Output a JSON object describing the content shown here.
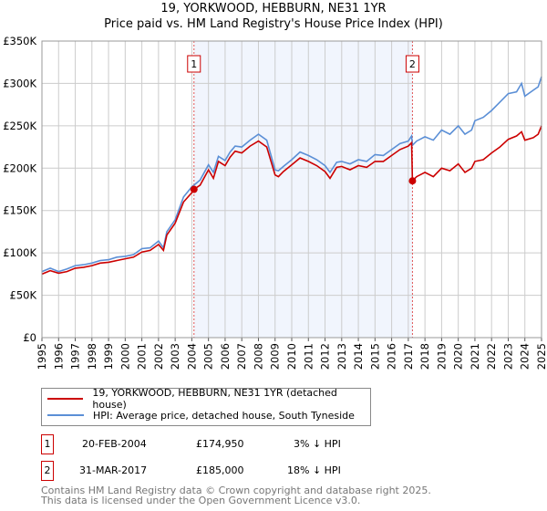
{
  "chart_data": {
    "type": "line",
    "title": "19, YORKWOOD, HEBBURN, NE31 1YR",
    "subtitle": "Price paid vs. HM Land Registry's House Price Index (HPI)",
    "xlim": [
      1995,
      2025
    ],
    "ylim": [
      0,
      350000
    ],
    "x_ticks": [
      "1995",
      "1996",
      "1997",
      "1998",
      "1999",
      "2000",
      "2001",
      "2002",
      "2003",
      "2004",
      "2005",
      "2006",
      "2007",
      "2008",
      "2009",
      "2010",
      "2011",
      "2012",
      "2013",
      "2014",
      "2015",
      "2016",
      "2017",
      "2018",
      "2019",
      "2020",
      "2021",
      "2022",
      "2023",
      "2024",
      "2025"
    ],
    "y_ticks": [
      {
        "v": 0,
        "label": "£0"
      },
      {
        "v": 50000,
        "label": "£50K"
      },
      {
        "v": 100000,
        "label": "£100K"
      },
      {
        "v": 150000,
        "label": "£150K"
      },
      {
        "v": 200000,
        "label": "£200K"
      },
      {
        "v": 250000,
        "label": "£250K"
      },
      {
        "v": 300000,
        "label": "£300K"
      },
      {
        "v": 350000,
        "label": "£350K"
      }
    ],
    "grid": true,
    "shaded_range": [
      2004.13,
      2017.25
    ],
    "series": [
      {
        "name": "19, YORKWOOD, HEBBURN, NE31 1YR (detached house)",
        "color": "#cc0000",
        "x": [
          1995,
          1995.5,
          1996,
          1996.5,
          1997,
          1997.5,
          1998,
          1998.5,
          1999,
          1999.5,
          2000,
          2000.5,
          2001,
          2001.5,
          2002,
          2002.3,
          2002.5,
          2003,
          2003.5,
          2004,
          2004.13,
          2004.5,
          2005,
          2005.3,
          2005.6,
          2006,
          2006.3,
          2006.6,
          2007,
          2007.5,
          2008,
          2008.5,
          2009,
          2009.2,
          2009.5,
          2010,
          2010.5,
          2011,
          2011.5,
          2012,
          2012.3,
          2012.7,
          2013,
          2013.5,
          2014,
          2014.5,
          2015,
          2015.5,
          2016,
          2016.5,
          2017,
          2017.2,
          2017.25,
          2017.5,
          2018,
          2018.5,
          2019,
          2019.5,
          2020,
          2020.4,
          2020.8,
          2021,
          2021.5,
          2022,
          2022.5,
          2023,
          2023.5,
          2023.8,
          2024,
          2024.5,
          2024.8,
          2025
        ],
        "y": [
          75000,
          79000,
          76000,
          78000,
          82000,
          83000,
          85000,
          88000,
          89000,
          91000,
          93000,
          95000,
          101000,
          103000,
          110000,
          103000,
          121000,
          135000,
          160000,
          171000,
          174950,
          180000,
          198000,
          188000,
          208000,
          203000,
          213000,
          220000,
          218000,
          226000,
          232000,
          225000,
          192000,
          190000,
          196000,
          204000,
          212000,
          208000,
          203000,
          196000,
          188000,
          201000,
          202000,
          198000,
          203000,
          201000,
          208000,
          208000,
          215000,
          222000,
          226000,
          230000,
          185000,
          190000,
          195000,
          190000,
          200000,
          197000,
          205000,
          195000,
          200000,
          208000,
          210000,
          218000,
          225000,
          234000,
          238000,
          243000,
          233000,
          236000,
          240000,
          250000
        ]
      },
      {
        "name": "HPI: Average price, detached house, South Tyneside",
        "color": "#5b8fd6",
        "x": [
          1995,
          1995.5,
          1996,
          1996.5,
          1997,
          1997.5,
          1998,
          1998.5,
          1999,
          1999.5,
          2000,
          2000.5,
          2001,
          2001.5,
          2002,
          2002.3,
          2002.5,
          2003,
          2003.5,
          2004,
          2004.13,
          2004.5,
          2005,
          2005.3,
          2005.6,
          2006,
          2006.3,
          2006.6,
          2007,
          2007.5,
          2008,
          2008.5,
          2009,
          2009.2,
          2009.5,
          2010,
          2010.5,
          2011,
          2011.5,
          2012,
          2012.3,
          2012.7,
          2013,
          2013.5,
          2014,
          2014.5,
          2015,
          2015.5,
          2016,
          2016.5,
          2017,
          2017.2,
          2017.25,
          2017.5,
          2018,
          2018.5,
          2019,
          2019.5,
          2020,
          2020.4,
          2020.8,
          2021,
          2021.5,
          2022,
          2022.5,
          2023,
          2023.5,
          2023.8,
          2024,
          2024.5,
          2024.8,
          2025
        ],
        "y": [
          78000,
          82000,
          78000,
          81000,
          85000,
          86000,
          88000,
          91000,
          92000,
          95000,
          96000,
          98000,
          105000,
          106000,
          114000,
          106000,
          125000,
          139000,
          166000,
          178000,
          180000,
          186000,
          204000,
          195000,
          214000,
          209000,
          219000,
          226000,
          225000,
          233000,
          240000,
          233000,
          198000,
          197000,
          202000,
          210000,
          219000,
          215000,
          210000,
          203000,
          195000,
          207000,
          208000,
          205000,
          210000,
          208000,
          216000,
          215000,
          222000,
          229000,
          232000,
          238000,
          227000,
          232000,
          237000,
          233000,
          245000,
          240000,
          250000,
          240000,
          245000,
          256000,
          260000,
          268000,
          278000,
          288000,
          290000,
          300000,
          285000,
          292000,
          296000,
          308000
        ]
      }
    ],
    "sales": [
      {
        "label": "1",
        "x": 2004.13,
        "y": 174950
      },
      {
        "label": "2",
        "x": 2017.25,
        "y": 185000
      }
    ]
  },
  "legend": {
    "red": "19, YORKWOOD, HEBBURN, NE31 1YR (detached house)",
    "blue": "HPI: Average price, detached house, South Tyneside"
  },
  "transactions": [
    {
      "num": "1",
      "date": "20-FEB-2004",
      "price": "£174,950",
      "hpi": "3% ↓ HPI"
    },
    {
      "num": "2",
      "date": "31-MAR-2017",
      "price": "£185,000",
      "hpi": "18% ↓ HPI"
    }
  ],
  "footer": {
    "line1": "Contains HM Land Registry data © Crown copyright and database right 2025.",
    "line2": "This data is licensed under the Open Government Licence v3.0."
  }
}
